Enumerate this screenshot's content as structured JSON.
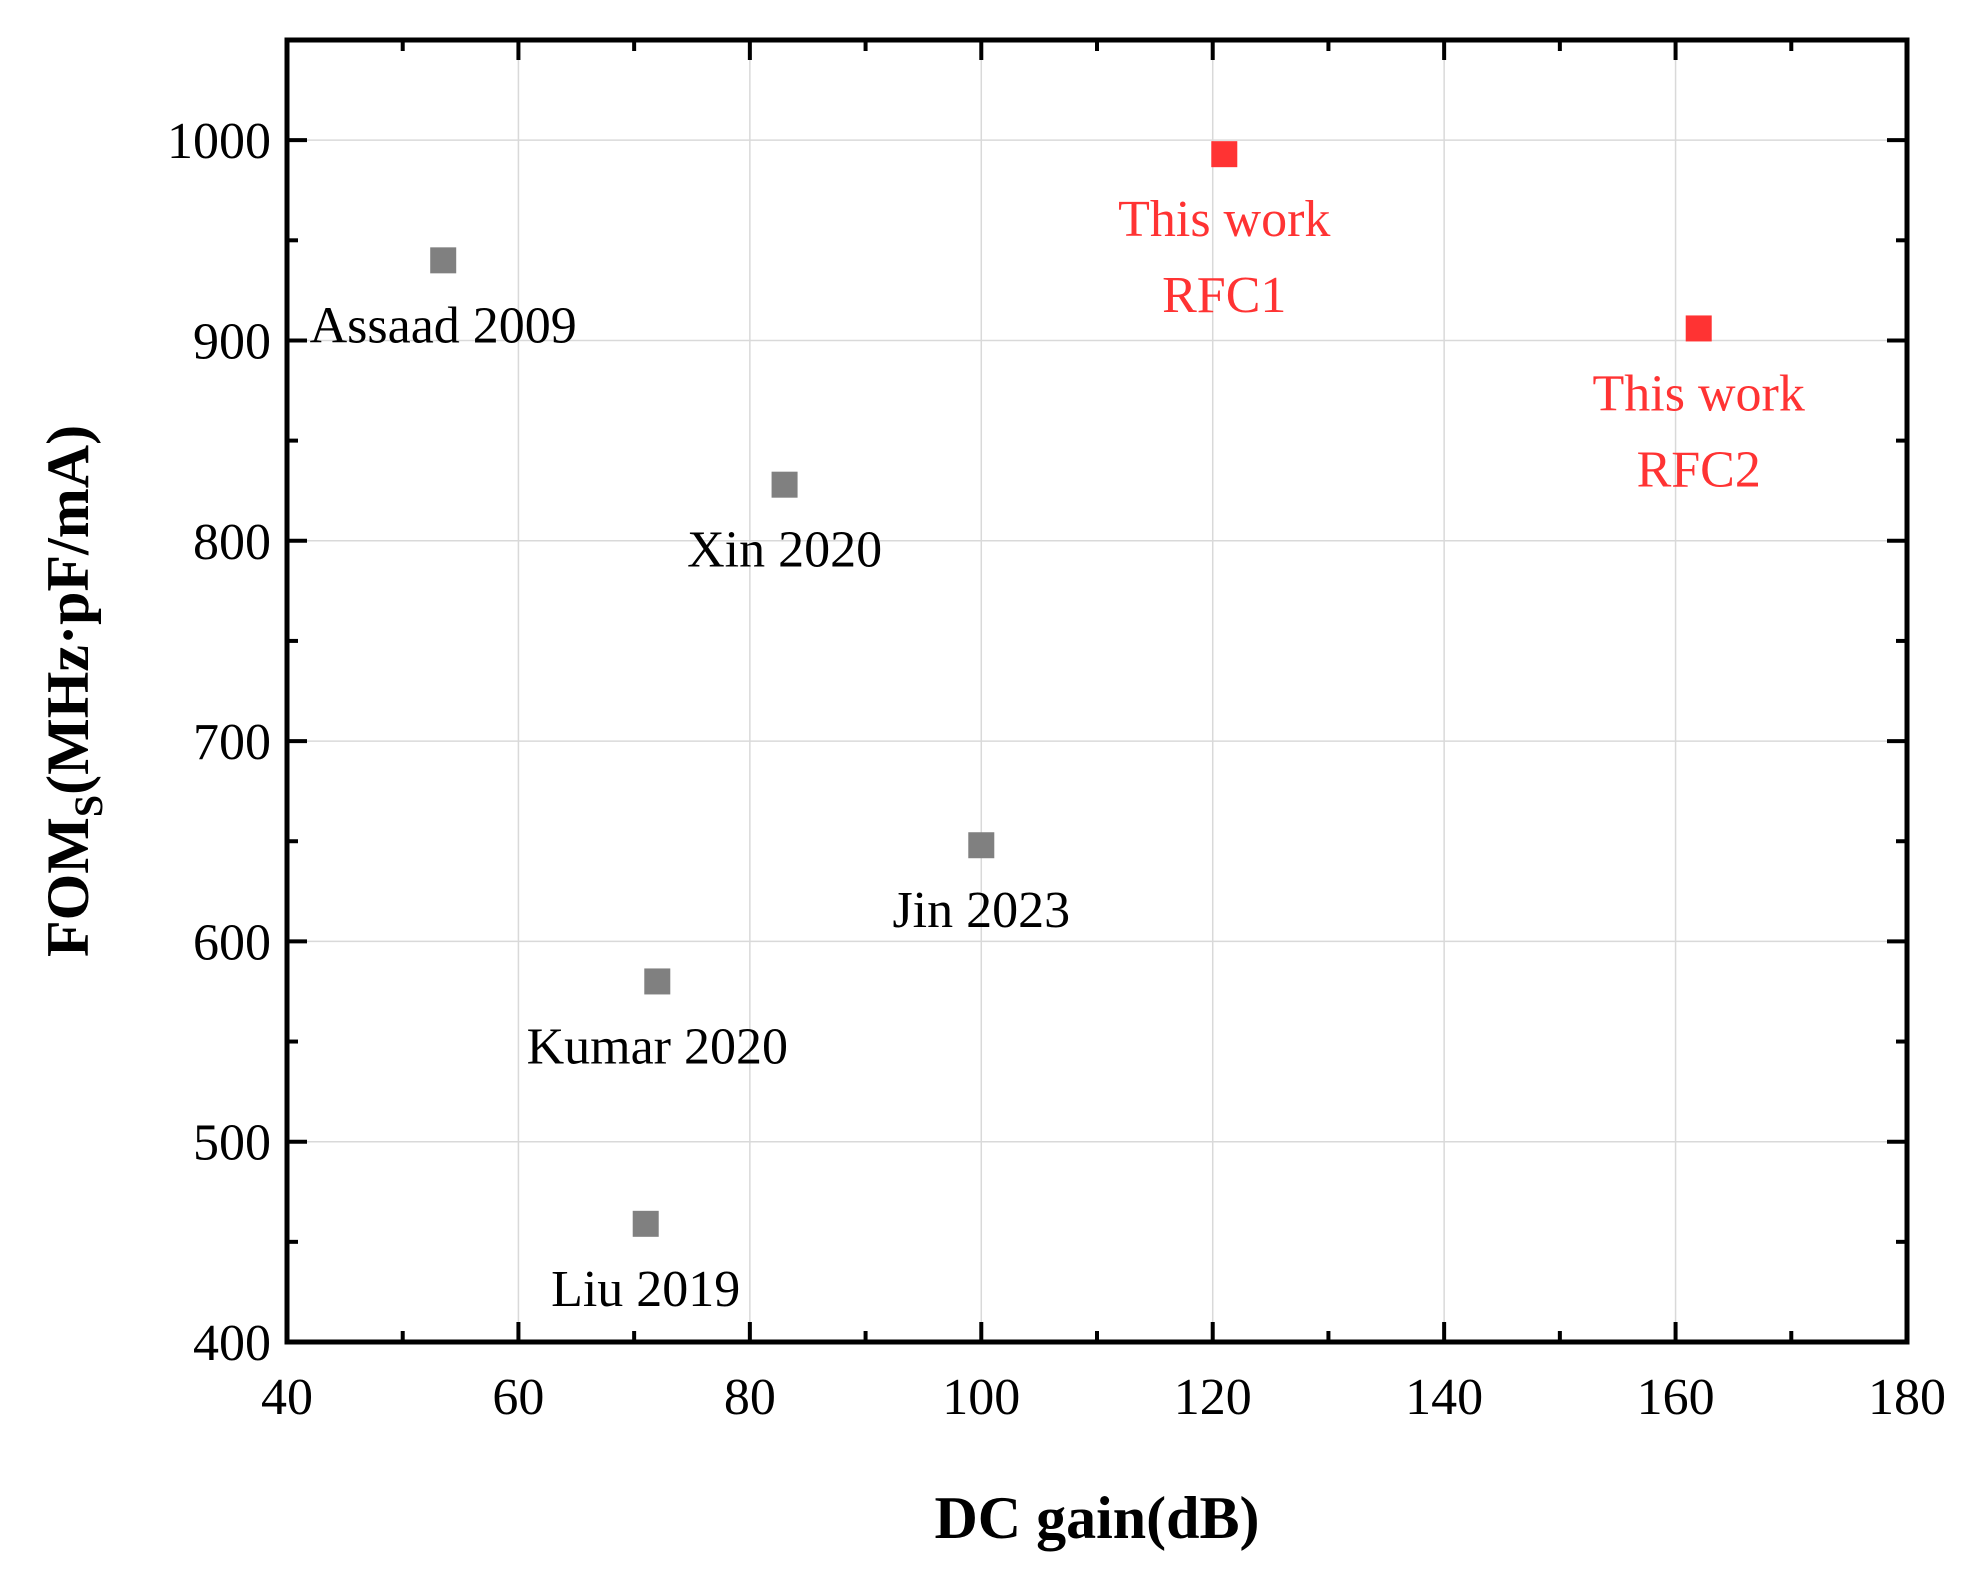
{
  "chart_data": {
    "type": "scatter",
    "title": "",
    "xlabel": "DC gain(dB)",
    "ylabel_main": "FOM",
    "ylabel_sub": "S",
    "ylabel_rest": "(MHz·pF/mA)",
    "xlim": [
      40,
      180
    ],
    "ylim": [
      400,
      1050
    ],
    "xticks": [
      40,
      60,
      80,
      100,
      120,
      140,
      160,
      180
    ],
    "yticks": [
      400,
      500,
      600,
      700,
      800,
      900,
      1000
    ],
    "grid": true,
    "colors": {
      "reference": "#808080",
      "this_work": "#ff3333",
      "label_reference": "#000000"
    },
    "points": [
      {
        "x": 53.5,
        "y": 940,
        "label": [
          "Assaad 2009"
        ],
        "group": "reference"
      },
      {
        "x": 83,
        "y": 828,
        "label": [
          "Xin 2020"
        ],
        "group": "reference"
      },
      {
        "x": 100,
        "y": 648,
        "label": [
          "Jin 2023"
        ],
        "group": "reference"
      },
      {
        "x": 72,
        "y": 580,
        "label": [
          "Kumar 2020"
        ],
        "group": "reference"
      },
      {
        "x": 71,
        "y": 459,
        "label": [
          "Liu 2019"
        ],
        "group": "reference"
      },
      {
        "x": 121,
        "y": 993,
        "label": [
          "This work",
          "RFC1"
        ],
        "group": "this_work"
      },
      {
        "x": 162,
        "y": 906,
        "label": [
          "This work",
          "RFC2"
        ],
        "group": "this_work"
      }
    ]
  }
}
